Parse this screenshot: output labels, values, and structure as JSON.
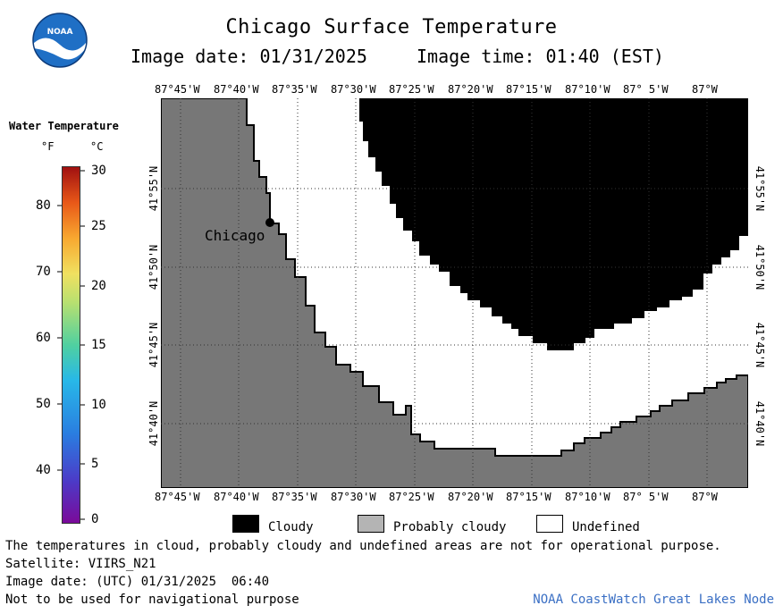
{
  "header": {
    "title": "Chicago Surface Temperature",
    "image_date_label": "Image date: 01/31/2025",
    "image_time_label": "Image time: 01:40 (EST)"
  },
  "logo": {
    "text": "NOAA",
    "icon": "noaa-logo-icon",
    "color": "#1f6fc5"
  },
  "colorbar": {
    "title": "Water Temperature",
    "unit_f": "°F",
    "unit_c": "°C",
    "f_ticks": [
      "80",
      "70",
      "60",
      "50",
      "40"
    ],
    "c_ticks": [
      "30",
      "25",
      "20",
      "15",
      "10",
      "5",
      "0"
    ]
  },
  "map": {
    "lon_labels": [
      "87°45'W",
      "87°40'W",
      "87°35'W",
      "87°30'W",
      "87°25'W",
      "87°20'W",
      "87°15'W",
      "87°10'W",
      "87° 5'W",
      "87°W"
    ],
    "lat_labels": [
      "41°55'N",
      "41°50'N",
      "41°45'N",
      "41°40'N"
    ],
    "city_label": "Chicago",
    "colors": {
      "land": "#777777",
      "cloud": "#000000",
      "undefined": "#ffffff"
    }
  },
  "legend": {
    "cloudy": "Cloudy",
    "probably_cloudy": "Probably cloudy",
    "undefined": "Undefined"
  },
  "notes": {
    "disclaimer": "The temperatures in cloud, probably cloudy and undefined areas are not for operational purpose.",
    "satellite": "Satellite: VIIRS_N21",
    "utc_date": "Image date: (UTC) 01/31/2025  06:40",
    "navigation": "Not to be used for navigational purpose",
    "credit": "NOAA CoastWatch Great Lakes Node"
  }
}
